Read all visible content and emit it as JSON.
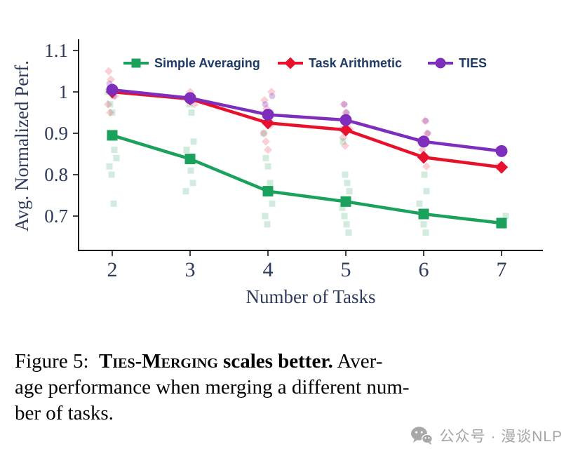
{
  "chart_data": {
    "type": "line",
    "title": "",
    "xlabel": "Number of Tasks",
    "ylabel": "Avg. Normalized Perf.",
    "x": [
      2,
      3,
      4,
      5,
      6,
      7
    ],
    "xlim": [
      1.55,
      7.55
    ],
    "ylim": [
      0.617,
      1.112
    ],
    "yticks": [
      0.7,
      0.8,
      0.9,
      1.0,
      1.1
    ],
    "ytick_labels": [
      "0.7",
      "0.8",
      "0.9",
      "1",
      "1.1"
    ],
    "grid": false,
    "legend_position": "top-inside-horizontal",
    "series": [
      {
        "name": "Simple Averaging",
        "marker": "square",
        "color": "#1aa15b",
        "scatter_opacity": 0.2,
        "values": [
          0.895,
          0.838,
          0.76,
          0.735,
          0.705,
          0.683
        ],
        "scatter": [
          [
            1.0,
            0.97,
            0.95,
            0.86,
            0.84,
            0.82,
            0.8,
            0.73
          ],
          [
            0.97,
            0.95,
            0.88,
            0.86,
            0.84,
            0.81,
            0.78,
            0.76
          ],
          [
            0.95,
            0.9,
            0.84,
            0.82,
            0.78,
            0.73,
            0.7,
            0.68
          ],
          [
            0.88,
            0.8,
            0.78,
            0.76,
            0.72,
            0.7,
            0.68,
            0.66
          ],
          [
            0.8,
            0.76,
            0.73,
            0.7,
            0.68,
            0.66
          ],
          [
            0.7,
            0.68
          ]
        ]
      },
      {
        "name": "Task Arithmetic",
        "marker": "diamond",
        "color": "#e8112d",
        "scatter_opacity": 0.2,
        "values": [
          1.0,
          0.983,
          0.925,
          0.908,
          0.842,
          0.818
        ],
        "scatter": [
          [
            1.05,
            1.03,
            1.01,
            0.99,
            0.97,
            0.95
          ],
          [
            1.0,
            0.99,
            0.97
          ],
          [
            1.0,
            0.98,
            0.96,
            0.94,
            0.92,
            0.9,
            0.88,
            0.86
          ],
          [
            0.97,
            0.95,
            0.93,
            0.91,
            0.89,
            0.87
          ],
          [
            0.93,
            0.9,
            0.88,
            0.86,
            0.84,
            0.82
          ],
          [
            0.82
          ]
        ]
      },
      {
        "name": "TIES",
        "marker": "circle",
        "color": "#7d2ebd",
        "scatter_opacity": 0.28,
        "values": [
          1.005,
          0.985,
          0.945,
          0.932,
          0.88,
          0.857
        ],
        "scatter": [
          [
            1.02,
            1.0,
            0.99
          ],
          [
            0.99,
            0.98
          ],
          [
            0.99,
            0.97,
            0.95,
            0.93
          ],
          [
            0.97,
            0.95,
            0.93,
            0.91
          ],
          [
            0.93,
            0.9,
            0.88
          ],
          [
            0.86
          ]
        ]
      }
    ]
  },
  "caption": {
    "lines": [
      [
        {
          "text": "Figure 5:  ",
          "style": "normal"
        },
        {
          "text": "Ties-Merging",
          "style": "bold-smallcaps"
        },
        {
          "text": " scales better.",
          "style": "bold"
        },
        {
          "text": " Aver-",
          "style": "normal"
        }
      ],
      [
        {
          "text": "age performance when merging a different num-",
          "style": "normal"
        }
      ],
      [
        {
          "text": "ber of tasks.",
          "style": "normal"
        }
      ]
    ]
  },
  "watermark": {
    "icon": "wechat-icon",
    "text": "公众号 · 漫谈NLP"
  }
}
